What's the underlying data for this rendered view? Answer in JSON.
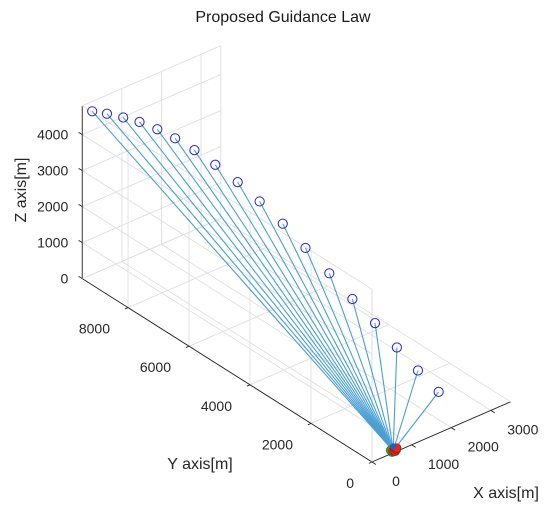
{
  "chart_data": {
    "type": "line",
    "projection": "3d",
    "title": "Proposed Guidance Law",
    "xlabel": "X axis[m]",
    "ylabel": "Y axis[m]",
    "zlabel": "Z axis[m]",
    "xlim": [
      0,
      3500
    ],
    "ylim": [
      0,
      9500
    ],
    "zlim": [
      0,
      4800
    ],
    "x_ticks": [
      "0",
      "1000",
      "2000",
      "3000"
    ],
    "y_ticks": [
      "0",
      "2000",
      "4000",
      "6000",
      "8000"
    ],
    "z_ticks": [
      "0",
      "1000",
      "2000",
      "3000",
      "4000"
    ],
    "grid": true,
    "colors": {
      "trajectory": "#4a9fd4",
      "start_marker": "#2323d9",
      "impact_marker": "#e8231c",
      "target_marker": "#2faa2f",
      "grid": "#dcdcdc",
      "box": "#262626"
    },
    "series": [
      {
        "start": [
          20,
          9200,
          4800
        ],
        "end": [
          580,
          60,
          0
        ]
      },
      {
        "start": [
          200,
          8950,
          4780
        ],
        "end": [
          580,
          60,
          0
        ]
      },
      {
        "start": [
          380,
          8650,
          4750
        ],
        "end": [
          580,
          60,
          0
        ]
      },
      {
        "start": [
          560,
          8350,
          4700
        ],
        "end": [
          580,
          60,
          0
        ]
      },
      {
        "start": [
          740,
          8000,
          4600
        ],
        "end": [
          580,
          60,
          0
        ]
      },
      {
        "start": [
          920,
          7650,
          4450
        ],
        "end": [
          580,
          60,
          0
        ]
      },
      {
        "start": [
          1100,
          7250,
          4250
        ],
        "end": [
          580,
          60,
          0
        ]
      },
      {
        "start": [
          1280,
          6800,
          4000
        ],
        "end": [
          580,
          60,
          0
        ]
      },
      {
        "start": [
          1460,
          6300,
          3700
        ],
        "end": [
          580,
          60,
          0
        ]
      },
      {
        "start": [
          1630,
          5800,
          3350
        ],
        "end": [
          580,
          60,
          0
        ]
      },
      {
        "start": [
          1790,
          5250,
          2950
        ],
        "end": [
          580,
          60,
          0
        ]
      },
      {
        "start": [
          1940,
          4700,
          2500
        ],
        "end": [
          580,
          60,
          0
        ]
      },
      {
        "start": [
          2080,
          4100,
          2050
        ],
        "end": [
          580,
          60,
          0
        ]
      },
      {
        "start": [
          2200,
          3500,
          1600
        ],
        "end": [
          580,
          60,
          0
        ]
      },
      {
        "start": [
          2310,
          2900,
          1200
        ],
        "end": [
          580,
          60,
          0
        ]
      },
      {
        "start": [
          2400,
          2300,
          800
        ],
        "end": [
          580,
          60,
          0
        ]
      },
      {
        "start": [
          2470,
          1700,
          450
        ],
        "end": [
          580,
          60,
          0
        ]
      },
      {
        "start": [
          2530,
          1100,
          150
        ],
        "end": [
          580,
          60,
          0
        ]
      }
    ],
    "targets": [
      {
        "x": 540,
        "y": 40,
        "z": 0
      },
      {
        "x": 600,
        "y": 80,
        "z": 0
      },
      {
        "x": 560,
        "y": 110,
        "z": 0
      }
    ],
    "impacts": [
      {
        "x": 580,
        "y": 60,
        "z": 0
      },
      {
        "x": 620,
        "y": 40,
        "z": 0
      },
      {
        "x": 640,
        "y": 90,
        "z": 0
      },
      {
        "x": 600,
        "y": 20,
        "z": 0
      },
      {
        "x": 660,
        "y": 60,
        "z": 0
      },
      {
        "x": 700,
        "y": 100,
        "z": 0
      }
    ]
  }
}
